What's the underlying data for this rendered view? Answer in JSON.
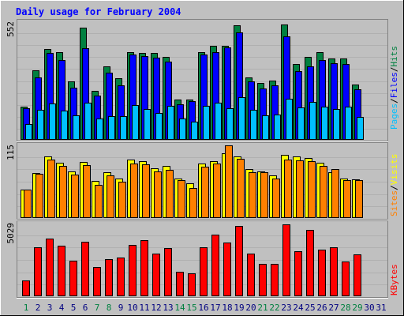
{
  "colors": {
    "background": "#c0c0c0",
    "panel": "#c0c0c0",
    "title": "#0000ff",
    "hits": "#008040",
    "files": "#0000ff",
    "pages": "#00c0ff",
    "visits": "#ffff00",
    "sites": "#ff8000",
    "kbytes": "#ff0000",
    "weekend_day": "#008040",
    "weekday": "#000080"
  },
  "chart_data": {
    "type": "bar",
    "title": "Daily usage for February 2004",
    "categories": [
      "1",
      "2",
      "3",
      "4",
      "5",
      "6",
      "7",
      "8",
      "9",
      "10",
      "11",
      "12",
      "13",
      "14",
      "15",
      "16",
      "17",
      "18",
      "19",
      "20",
      "21",
      "22",
      "23",
      "24",
      "25",
      "26",
      "27",
      "28",
      "29",
      "30",
      "31"
    ],
    "weekend_days": [
      "1",
      "7",
      "8",
      "14",
      "15",
      "21",
      "22",
      "28",
      "29"
    ],
    "panels": [
      {
        "id": "hits-files-pages",
        "max_label": "552",
        "ymax": 552,
        "legend": [
          "Pages",
          "/",
          "Files",
          "/",
          "Hits"
        ],
        "series": [
          {
            "name": "Hits",
            "values": [
              159,
              329,
              433,
              416,
              279,
              532,
              231,
              351,
              292,
              418,
              414,
              414,
              396,
              193,
              193,
              418,
              448,
              448,
              543,
              297,
              269,
              281,
              547,
              362,
              394,
              418,
              386,
              386,
              263,
              0,
              0
            ]
          },
          {
            "name": "Files",
            "values": [
              149,
              297,
              414,
              379,
              249,
              434,
              212,
              318,
              259,
              406,
              397,
              390,
              372,
              168,
              183,
              406,
              418,
              439,
              510,
              277,
              245,
              258,
              492,
              327,
              351,
              379,
              363,
              361,
              242,
              0,
              0
            ]
          },
          {
            "name": "Pages",
            "values": [
              74,
              144,
              173,
              140,
              117,
              178,
              101,
              111,
              112,
              164,
              148,
              127,
              160,
              103,
              86,
              161,
              178,
              152,
              201,
              143,
              115,
              119,
              194,
              155,
              181,
              159,
              148,
              159,
              110,
              0,
              0
            ]
          }
        ]
      },
      {
        "id": "visits-sites",
        "max_label": "115",
        "ymax": 115,
        "legend": [
          "Sites",
          "/",
          "Visits"
        ],
        "series": [
          {
            "name": "Visits",
            "values": [
              45,
              71,
              97,
              88,
              74,
              89,
              59,
              73,
              63,
              92,
              90,
              79,
              82,
              63,
              55,
              86,
              90,
              102,
              97,
              77,
              74,
              67,
              100,
              97,
              95,
              88,
              73,
              62,
              61,
              0,
              0
            ]
          },
          {
            "name": "Sites",
            "values": [
              45,
              70,
              93,
              83,
              69,
              84,
              53,
              68,
              57,
              86,
              85,
              74,
              76,
              60,
              48,
              81,
              86,
              115,
              94,
              73,
              72,
              63,
              93,
              91,
              90,
              82,
              77,
              60,
              60,
              0,
              0
            ]
          }
        ]
      },
      {
        "id": "kbytes",
        "max_label": "5029",
        "ymax": 5029,
        "legend": [
          "KBytes"
        ],
        "series": [
          {
            "name": "KBytes",
            "values": [
              1100,
              3450,
              4010,
              3520,
              2500,
              3840,
              2070,
              2620,
              2720,
              3600,
              3950,
              2960,
              3370,
              1690,
              1600,
              3450,
              4290,
              3770,
              4900,
              3000,
              2260,
              2280,
              5029,
              3170,
              4650,
              3250,
              3430,
              2420,
              2950,
              0,
              0
            ]
          }
        ]
      }
    ]
  }
}
